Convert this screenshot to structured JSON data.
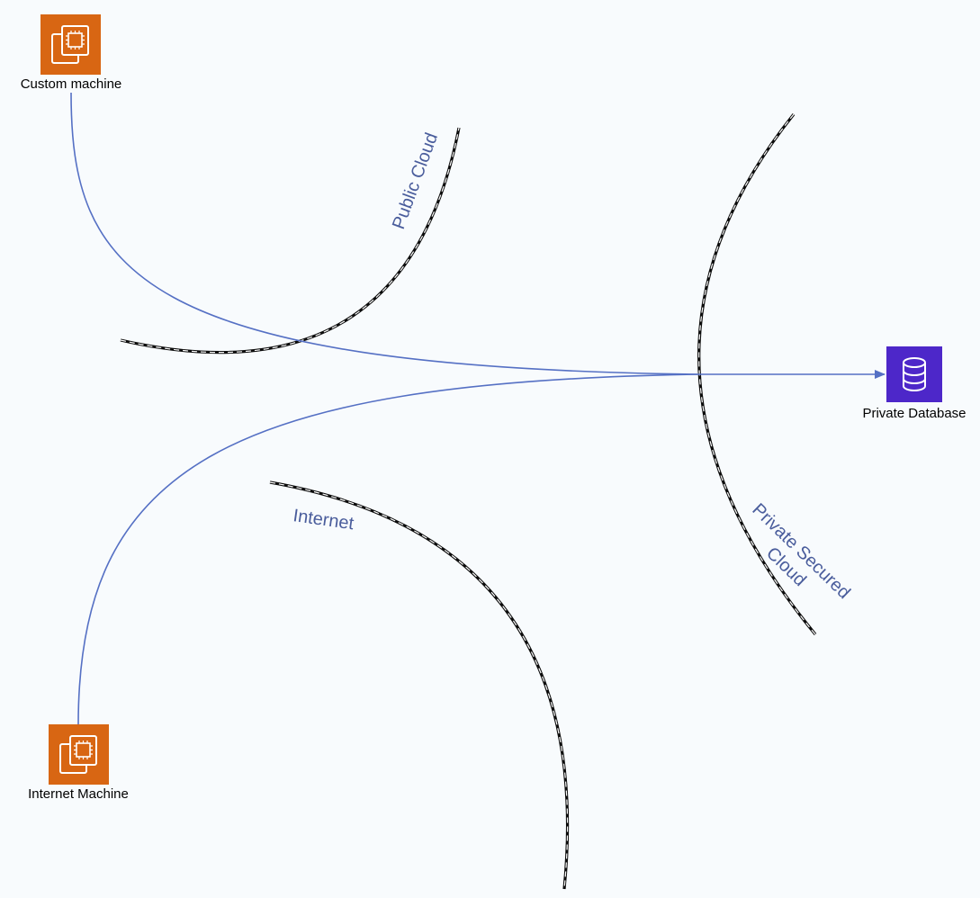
{
  "colors": {
    "background": "#f8fbfd",
    "compute_icon": "#d86613",
    "database_icon": "#4d27c9",
    "connector": "#5570c4",
    "zone_label": "#4a5d9c",
    "boundary": "#0b0b0b"
  },
  "nodes": {
    "custom_machine": {
      "label": "Custom machine",
      "icon": "ec2-instance-icon"
    },
    "internet_machine": {
      "label": "Internet Machine",
      "icon": "ec2-instance-icon"
    },
    "private_database": {
      "label": "Private Database",
      "icon": "database-icon"
    }
  },
  "zones": {
    "public_cloud": {
      "label": "Public Cloud"
    },
    "internet": {
      "label": "Internet"
    },
    "private_secured_cloud": {
      "label_line1": "Private Secured",
      "label_line2": "Cloud"
    }
  },
  "edges": [
    {
      "from": "Custom machine",
      "to": "Private Database"
    },
    {
      "from": "Internet Machine",
      "to": "Private Database"
    }
  ]
}
